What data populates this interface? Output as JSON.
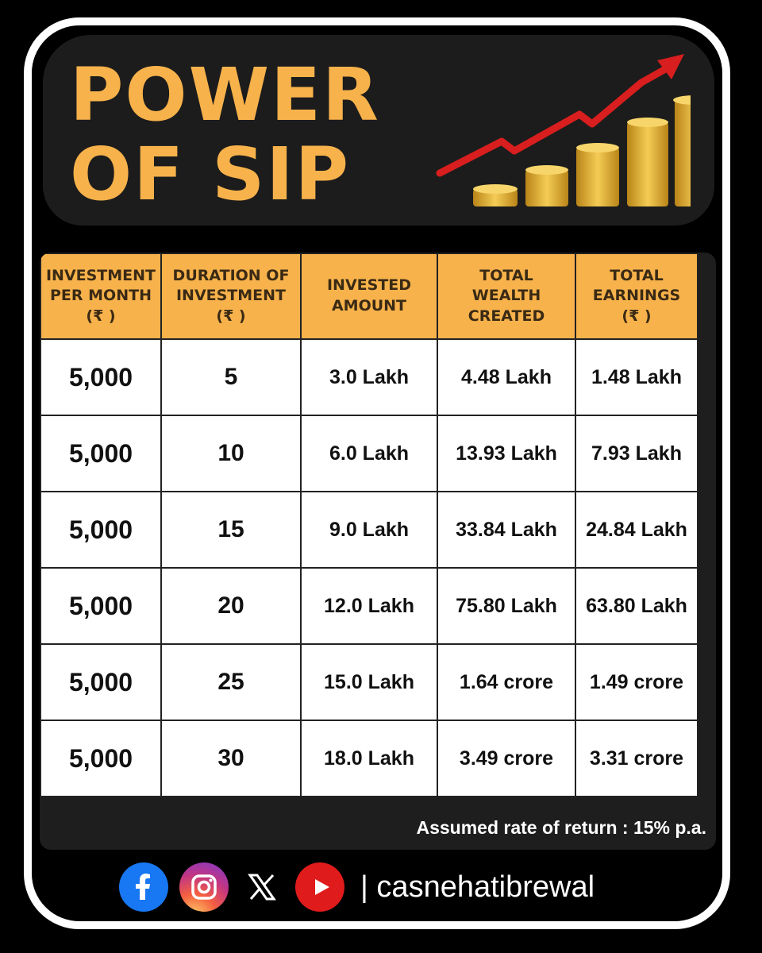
{
  "title": {
    "line1": "POWER",
    "line2": "OF SIP"
  },
  "colors": {
    "accent": "#f7b24b",
    "arrow": "#d81e1e",
    "coin": "#e2ad2c",
    "background": "#000000"
  },
  "table": {
    "headers": [
      [
        "INVESTMENT",
        "PER MONTH",
        "(₹ )"
      ],
      [
        "DURATION OF",
        "INVESTMENT",
        "(₹ )"
      ],
      [
        "INVESTED",
        "AMOUNT"
      ],
      [
        "TOTAL",
        "WEALTH",
        "CREATED"
      ],
      [
        "TOTAL",
        "EARNINGS",
        "(₹ )"
      ]
    ],
    "rows": [
      [
        "5,000",
        "5",
        "3.0 Lakh",
        "4.48 Lakh",
        "1.48 Lakh"
      ],
      [
        "5,000",
        "10",
        "6.0 Lakh",
        "13.93 Lakh",
        "7.93 Lakh"
      ],
      [
        "5,000",
        "15",
        "9.0 Lakh",
        "33.84 Lakh",
        "24.84 Lakh"
      ],
      [
        "5,000",
        "20",
        "12.0 Lakh",
        "75.80 Lakh",
        "63.80 Lakh"
      ],
      [
        "5,000",
        "25",
        "15.0 Lakh",
        "1.64 crore",
        "1.49 crore"
      ],
      [
        "5,000",
        "30",
        "18.0 Lakh",
        "3.49 crore",
        "3.31 crore"
      ]
    ]
  },
  "note": "Assumed rate of return : 15% p.a.",
  "footer": {
    "handle": "| casnehatibrewal",
    "icons": [
      "facebook-icon",
      "instagram-icon",
      "x-icon",
      "youtube-icon"
    ]
  }
}
